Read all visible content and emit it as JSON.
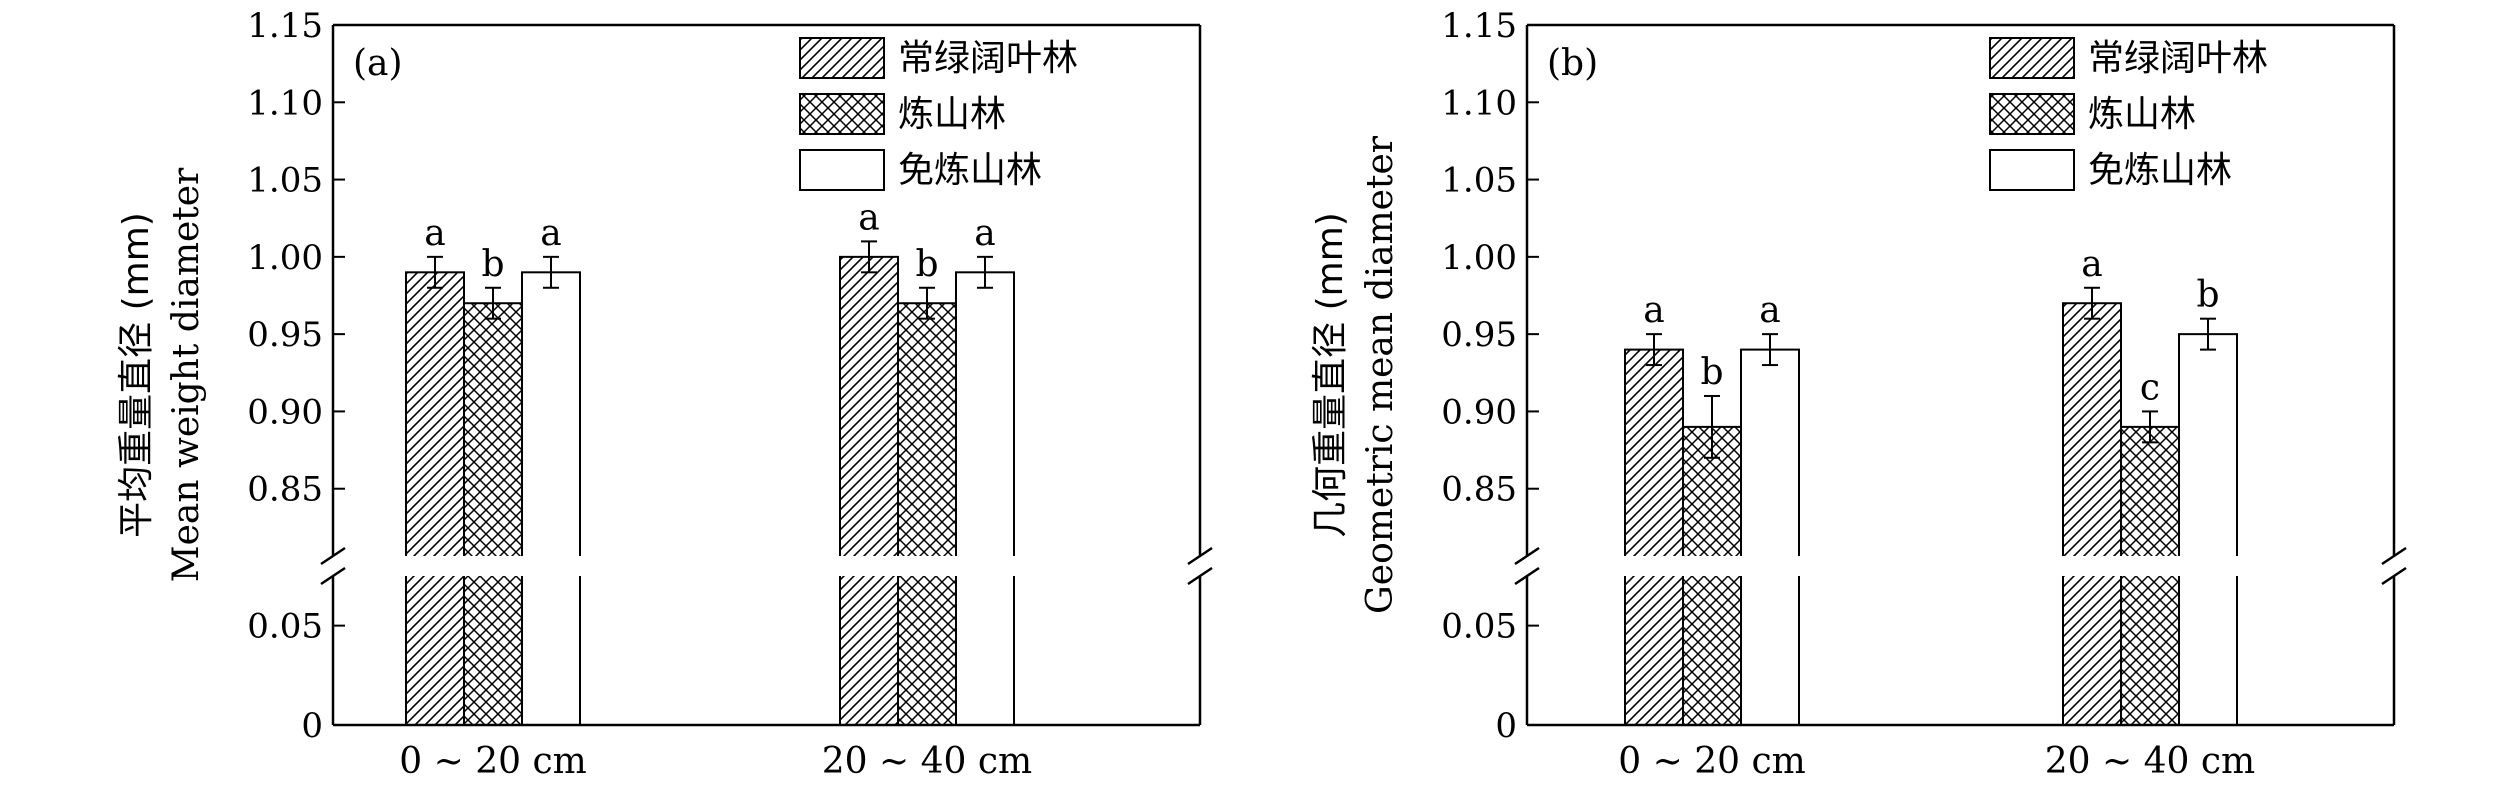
{
  "figure": {
    "legend_labels": [
      "常绿阔叶林",
      "炼山林",
      "免炼山林"
    ]
  },
  "chart_data": [
    {
      "type": "bar",
      "panel_label": "(a)",
      "ylabel_cn": "平均重量直径 (mm)",
      "ylabel_en": "Mean weight diameter",
      "categories": [
        "0 ~ 20 cm",
        "20 ~ 40 cm"
      ],
      "series": [
        {
          "name": "常绿阔叶林",
          "pattern": "diagonal-hatch",
          "values": [
            0.99,
            1.0
          ],
          "errors": [
            0.01,
            0.01
          ],
          "letters": [
            "a",
            "a"
          ]
        },
        {
          "name": "炼山林",
          "pattern": "cross-hatch",
          "values": [
            0.97,
            0.97
          ],
          "errors": [
            0.01,
            0.01
          ],
          "letters": [
            "b",
            "b"
          ]
        },
        {
          "name": "免炼山林",
          "pattern": "none",
          "values": [
            0.99,
            0.99
          ],
          "errors": [
            0.01,
            0.01
          ],
          "letters": [
            "a",
            "a"
          ]
        }
      ],
      "y_axis_break": [
        0.05,
        0.8
      ],
      "ylim_lower": [
        0,
        0.08
      ],
      "ylim_upper": [
        0.8,
        1.15
      ],
      "yticks_lower": [
        "0",
        "0.05"
      ],
      "yticks_upper": [
        "0.85",
        "0.90",
        "0.95",
        "1.00",
        "1.05",
        "1.10",
        "1.15"
      ],
      "legend_position": "top-right",
      "grid": false
    },
    {
      "type": "bar",
      "panel_label": "(b)",
      "ylabel_cn": "几何重量直径 (mm)",
      "ylabel_en": "Geometric mean diameter",
      "categories": [
        "0 ~ 20 cm",
        "20 ~ 40 cm"
      ],
      "series": [
        {
          "name": "常绿阔叶林",
          "pattern": "diagonal-hatch",
          "values": [
            0.94,
            0.97
          ],
          "errors": [
            0.01,
            0.01
          ],
          "letters": [
            "a",
            "a"
          ]
        },
        {
          "name": "炼山林",
          "pattern": "cross-hatch",
          "values": [
            0.89,
            0.89
          ],
          "errors": [
            0.02,
            0.01
          ],
          "letters": [
            "b",
            "c"
          ]
        },
        {
          "name": "免炼山林",
          "pattern": "none",
          "values": [
            0.94,
            0.95
          ],
          "errors": [
            0.01,
            0.01
          ],
          "letters": [
            "a",
            "b"
          ]
        }
      ],
      "y_axis_break": [
        0.05,
        0.8
      ],
      "ylim_lower": [
        0,
        0.08
      ],
      "ylim_upper": [
        0.8,
        1.15
      ],
      "yticks_lower": [
        "0",
        "0.05"
      ],
      "yticks_upper": [
        "0.85",
        "0.90",
        "0.95",
        "1.00",
        "1.05",
        "1.10",
        "1.15"
      ],
      "legend_position": "top-right",
      "grid": false
    }
  ]
}
